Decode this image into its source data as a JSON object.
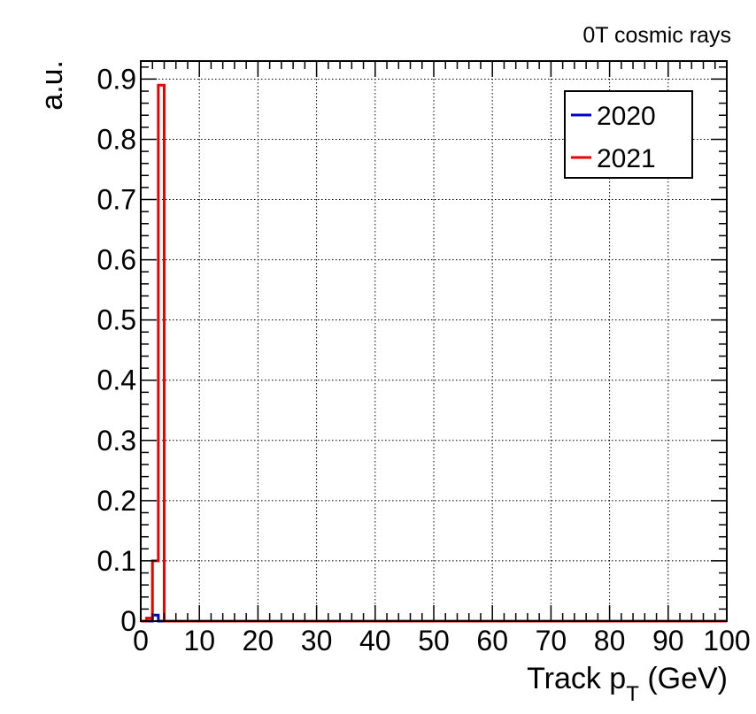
{
  "chart_data": {
    "type": "histogram",
    "annotation": "0T cosmic rays",
    "xlabel": {
      "main": "Track p",
      "sub": "T",
      "unit": " (GeV)"
    },
    "ylabel": "a.u.",
    "xlim": [
      0,
      100
    ],
    "ylim": [
      0,
      0.93
    ],
    "x_ticks": [
      0,
      10,
      20,
      30,
      40,
      50,
      60,
      70,
      80,
      90,
      100
    ],
    "y_ticks": [
      0,
      0.1,
      0.2,
      0.3,
      0.4,
      0.5,
      0.6,
      0.7,
      0.8,
      0.9
    ],
    "x_tick_labels": [
      "0",
      "10",
      "20",
      "30",
      "40",
      "50",
      "60",
      "70",
      "80",
      "90",
      "100"
    ],
    "y_tick_labels": [
      "0",
      "0.1",
      "0.2",
      "0.3",
      "0.4",
      "0.5",
      "0.6",
      "0.7",
      "0.8",
      "0.9"
    ],
    "grid": true,
    "legend_position": "top-right",
    "bin_edges": [
      0,
      1,
      2,
      3,
      4,
      5,
      100
    ],
    "series": [
      {
        "name": "2020",
        "color": "#0000cc",
        "values": [
          0,
          0,
          0.01,
          0,
          0,
          0
        ]
      },
      {
        "name": "2021",
        "color": "#ee0000",
        "values": [
          0,
          0.005,
          0.1,
          0.89,
          0,
          0
        ]
      }
    ]
  }
}
